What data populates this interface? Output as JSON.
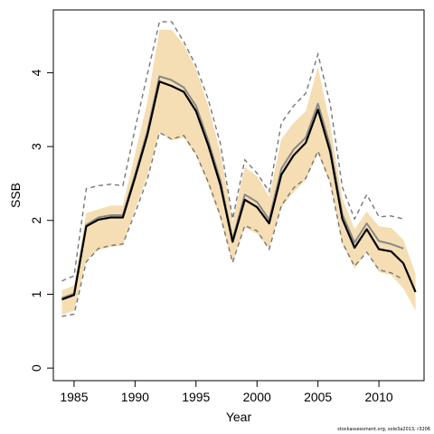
{
  "chart_data": {
    "type": "line",
    "xlabel": "Year",
    "ylabel": "SSB",
    "xlim": [
      1983.3,
      2013.7
    ],
    "ylim": [
      -0.17,
      4.85
    ],
    "x_ticks": [
      "1985",
      "1990",
      "1995",
      "2000",
      "2005",
      "2010"
    ],
    "y_ticks": [
      "0",
      "1",
      "2",
      "3",
      "4"
    ],
    "grid": false,
    "colors": {
      "band": "#F5DEB3",
      "line": "#000000",
      "prev_line": "#888888",
      "dashed": "#777777",
      "frame": "#000000"
    },
    "series": [
      {
        "x": [
          1984,
          1985,
          1986,
          1987,
          1988,
          1989,
          1990,
          1991,
          1992,
          1993,
          1994,
          1995,
          1996,
          1997,
          1998,
          1999,
          2000,
          2001,
          2002,
          2003,
          2004,
          2005,
          2006,
          2007,
          2008,
          2009,
          2010,
          2011,
          2012,
          2013
        ],
        "values": [
          0.93,
          0.99,
          1.92,
          2.01,
          2.04,
          2.04,
          2.58,
          3.15,
          3.88,
          3.82,
          3.74,
          3.48,
          3.02,
          2.48,
          1.71,
          2.28,
          2.18,
          1.96,
          2.62,
          2.88,
          3.05,
          3.5,
          2.93,
          2.02,
          1.63,
          1.88,
          1.61,
          1.58,
          1.42,
          1.03
        ]
      },
      {
        "x": [
          1984,
          1985,
          1986,
          1987,
          1988,
          1989,
          1990,
          1991,
          1992,
          1993,
          1994,
          1995,
          1996,
          1997,
          1998,
          1999,
          2000,
          2001,
          2002,
          2003,
          2004,
          2005,
          2006,
          2007,
          2008,
          2009,
          2010,
          2011,
          2012,
          2013
        ],
        "upper": [
          1.05,
          1.12,
          2.1,
          2.15,
          2.2,
          2.2,
          2.9,
          3.6,
          4.58,
          4.58,
          4.38,
          4.05,
          3.55,
          2.92,
          1.99,
          2.72,
          2.6,
          2.32,
          3.1,
          3.32,
          3.48,
          4.08,
          3.3,
          2.3,
          1.88,
          2.12,
          1.92,
          1.9,
          1.74,
          1.28
        ],
        "lower": [
          0.72,
          0.78,
          1.46,
          1.6,
          1.64,
          1.66,
          2.15,
          2.6,
          3.2,
          3.08,
          3.12,
          2.88,
          2.48,
          2.02,
          1.42,
          1.9,
          1.82,
          1.62,
          2.18,
          2.38,
          2.55,
          2.9,
          2.5,
          1.68,
          1.35,
          1.58,
          1.3,
          1.26,
          1.08,
          0.78
        ]
      },
      {
        "x": [
          1984,
          1985,
          1986,
          1987,
          1988,
          1989,
          1990,
          1991,
          1992,
          1993,
          1994,
          1995,
          1996,
          1997,
          1998,
          1999,
          2000,
          2001,
          2002,
          2003,
          2004,
          2005,
          2006,
          2007,
          2008,
          2009,
          2010,
          2011,
          2012
        ],
        "values": [
          0.95,
          1.01,
          1.94,
          2.04,
          2.07,
          2.07,
          2.62,
          3.2,
          3.95,
          3.9,
          3.8,
          3.55,
          3.08,
          2.54,
          1.74,
          2.35,
          2.25,
          2.01,
          2.7,
          2.96,
          3.12,
          3.58,
          3.01,
          2.08,
          1.7,
          1.96,
          1.72,
          1.68,
          1.62
        ]
      },
      {
        "x": [
          1984,
          1985,
          1986,
          1987,
          1988,
          1989,
          1990,
          1991,
          1992,
          1993,
          1994,
          1995,
          1996,
          1997,
          1998,
          1999,
          2000,
          2001,
          2002,
          2003,
          2004,
          2005,
          2006,
          2007,
          2008,
          2009,
          2010,
          2011,
          2012
        ],
        "upper": [
          1.18,
          1.25,
          2.43,
          2.47,
          2.49,
          2.47,
          3.24,
          3.97,
          4.69,
          4.69,
          4.42,
          4.09,
          3.64,
          3.04,
          2.02,
          2.82,
          2.64,
          2.39,
          3.32,
          3.55,
          3.72,
          4.25,
          3.58,
          2.45,
          2.02,
          2.35,
          2.05,
          2.06,
          2.02
        ],
        "lower": [
          0.7,
          0.73,
          1.44,
          1.62,
          1.66,
          1.68,
          2.1,
          2.55,
          3.19,
          3.1,
          3.15,
          2.9,
          2.52,
          2.06,
          1.43,
          1.93,
          1.86,
          1.61,
          2.2,
          2.44,
          2.57,
          2.94,
          2.52,
          1.7,
          1.38,
          1.57,
          1.33,
          1.29,
          1.2
        ]
      }
    ]
  },
  "footnote": "stockassessment.org, sole3a2013, r3206"
}
